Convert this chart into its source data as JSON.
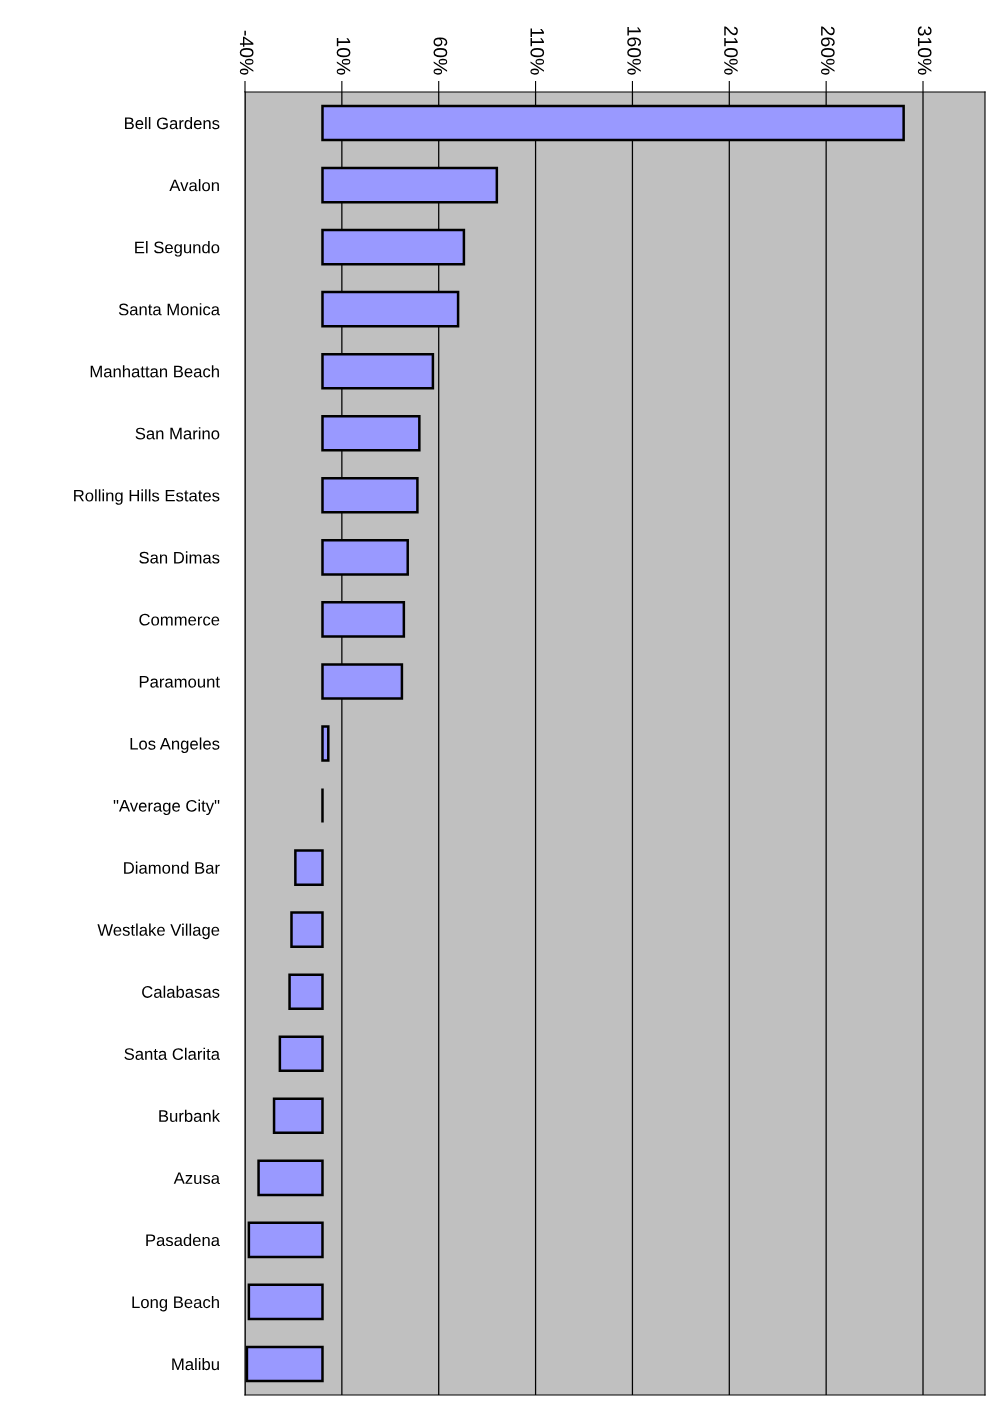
{
  "chart_data": {
    "type": "bar",
    "orientation": "horizontal",
    "categories": [
      "Bell Gardens",
      "Avalon",
      "El Segundo",
      "Santa Monica",
      "Manhattan Beach",
      "San Marino",
      "Rolling Hills Estates",
      "San Dimas",
      "Commerce",
      "Paramount",
      "Los Angeles",
      "\"Average City\"",
      "Diamond Bar",
      "Westlake Village",
      "Calabasas",
      "Santa Clarita",
      "Burbank",
      "Azusa",
      "Pasadena",
      "Long Beach",
      "Malibu"
    ],
    "values": [
      300,
      90,
      73,
      70,
      57,
      50,
      49,
      44,
      42,
      41,
      3,
      0,
      -14,
      -16,
      -17,
      -22,
      -25,
      -33,
      -38,
      -38,
      -39
    ],
    "colors": [
      "#9999ff",
      "#9999ff",
      "#9999ff",
      "#9999ff",
      "#9999ff",
      "#9999ff",
      "#9999ff",
      "#9999ff",
      "#9999ff",
      "#9999ff",
      "#9999ff",
      "#000000",
      "#9999ff",
      "#9999ff",
      "#9999ff",
      "#9999ff",
      "#9999ff",
      "#9999ff",
      "#9999ff",
      "#9999ff",
      "#9999ff"
    ],
    "xlim": [
      -40,
      342
    ],
    "xticks": [
      {
        "value": -40,
        "label": "-40%"
      },
      {
        "value": 10,
        "label": "10%"
      },
      {
        "value": 60,
        "label": "60%"
      },
      {
        "value": 110,
        "label": "110%"
      },
      {
        "value": 160,
        "label": "160%"
      },
      {
        "value": 210,
        "label": "210%"
      },
      {
        "value": 260,
        "label": "260%"
      },
      {
        "value": 310,
        "label": "310%"
      }
    ],
    "grid": "x"
  }
}
